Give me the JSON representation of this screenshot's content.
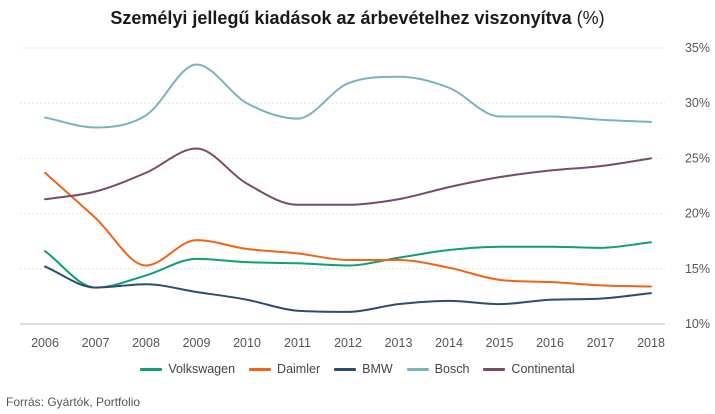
{
  "chart_data": {
    "type": "line",
    "title": "Személyi jellegű kiadások az árbevételhez viszonyítva",
    "title_unit": "(%)",
    "x": [
      "2006",
      "2007",
      "2008",
      "2009",
      "2010",
      "2011",
      "2012",
      "2013",
      "2014",
      "2015",
      "2016",
      "2017",
      "2018"
    ],
    "y_ticks": [
      "10%",
      "15%",
      "20%",
      "25%",
      "30%",
      "35%"
    ],
    "ylim": [
      10,
      35
    ],
    "y_axis_position": "right",
    "grid": "horizontal",
    "legend_position": "bottom",
    "series": [
      {
        "name": "Volkswagen",
        "color": "#0f9e78",
        "values": [
          16.6,
          13.3,
          14.4,
          15.9,
          15.6,
          15.5,
          15.3,
          16.0,
          16.7,
          17.0,
          17.0,
          16.9,
          17.4
        ]
      },
      {
        "name": "Daimler",
        "color": "#f06414",
        "values": [
          23.7,
          19.6,
          15.3,
          17.6,
          16.8,
          16.4,
          15.8,
          15.8,
          15.1,
          14.0,
          13.8,
          13.5,
          13.4
        ]
      },
      {
        "name": "BMW",
        "color": "#2c4d73",
        "values": [
          15.2,
          13.3,
          13.6,
          12.9,
          12.2,
          11.2,
          11.1,
          11.8,
          12.1,
          11.8,
          12.2,
          12.3,
          12.8
        ]
      },
      {
        "name": "Bosch",
        "color": "#7ab3bf",
        "values": [
          28.7,
          27.8,
          28.9,
          33.5,
          30.0,
          28.6,
          31.8,
          32.4,
          31.4,
          28.8,
          28.8,
          28.5,
          28.3
        ]
      },
      {
        "name": "Continental",
        "color": "#7a4a6a",
        "values": [
          21.3,
          22.0,
          23.7,
          25.9,
          22.7,
          20.8,
          20.8,
          21.3,
          22.4,
          23.3,
          23.9,
          24.3,
          25.0
        ]
      }
    ],
    "source": "Forrás: Gyártók, Portfolio"
  }
}
